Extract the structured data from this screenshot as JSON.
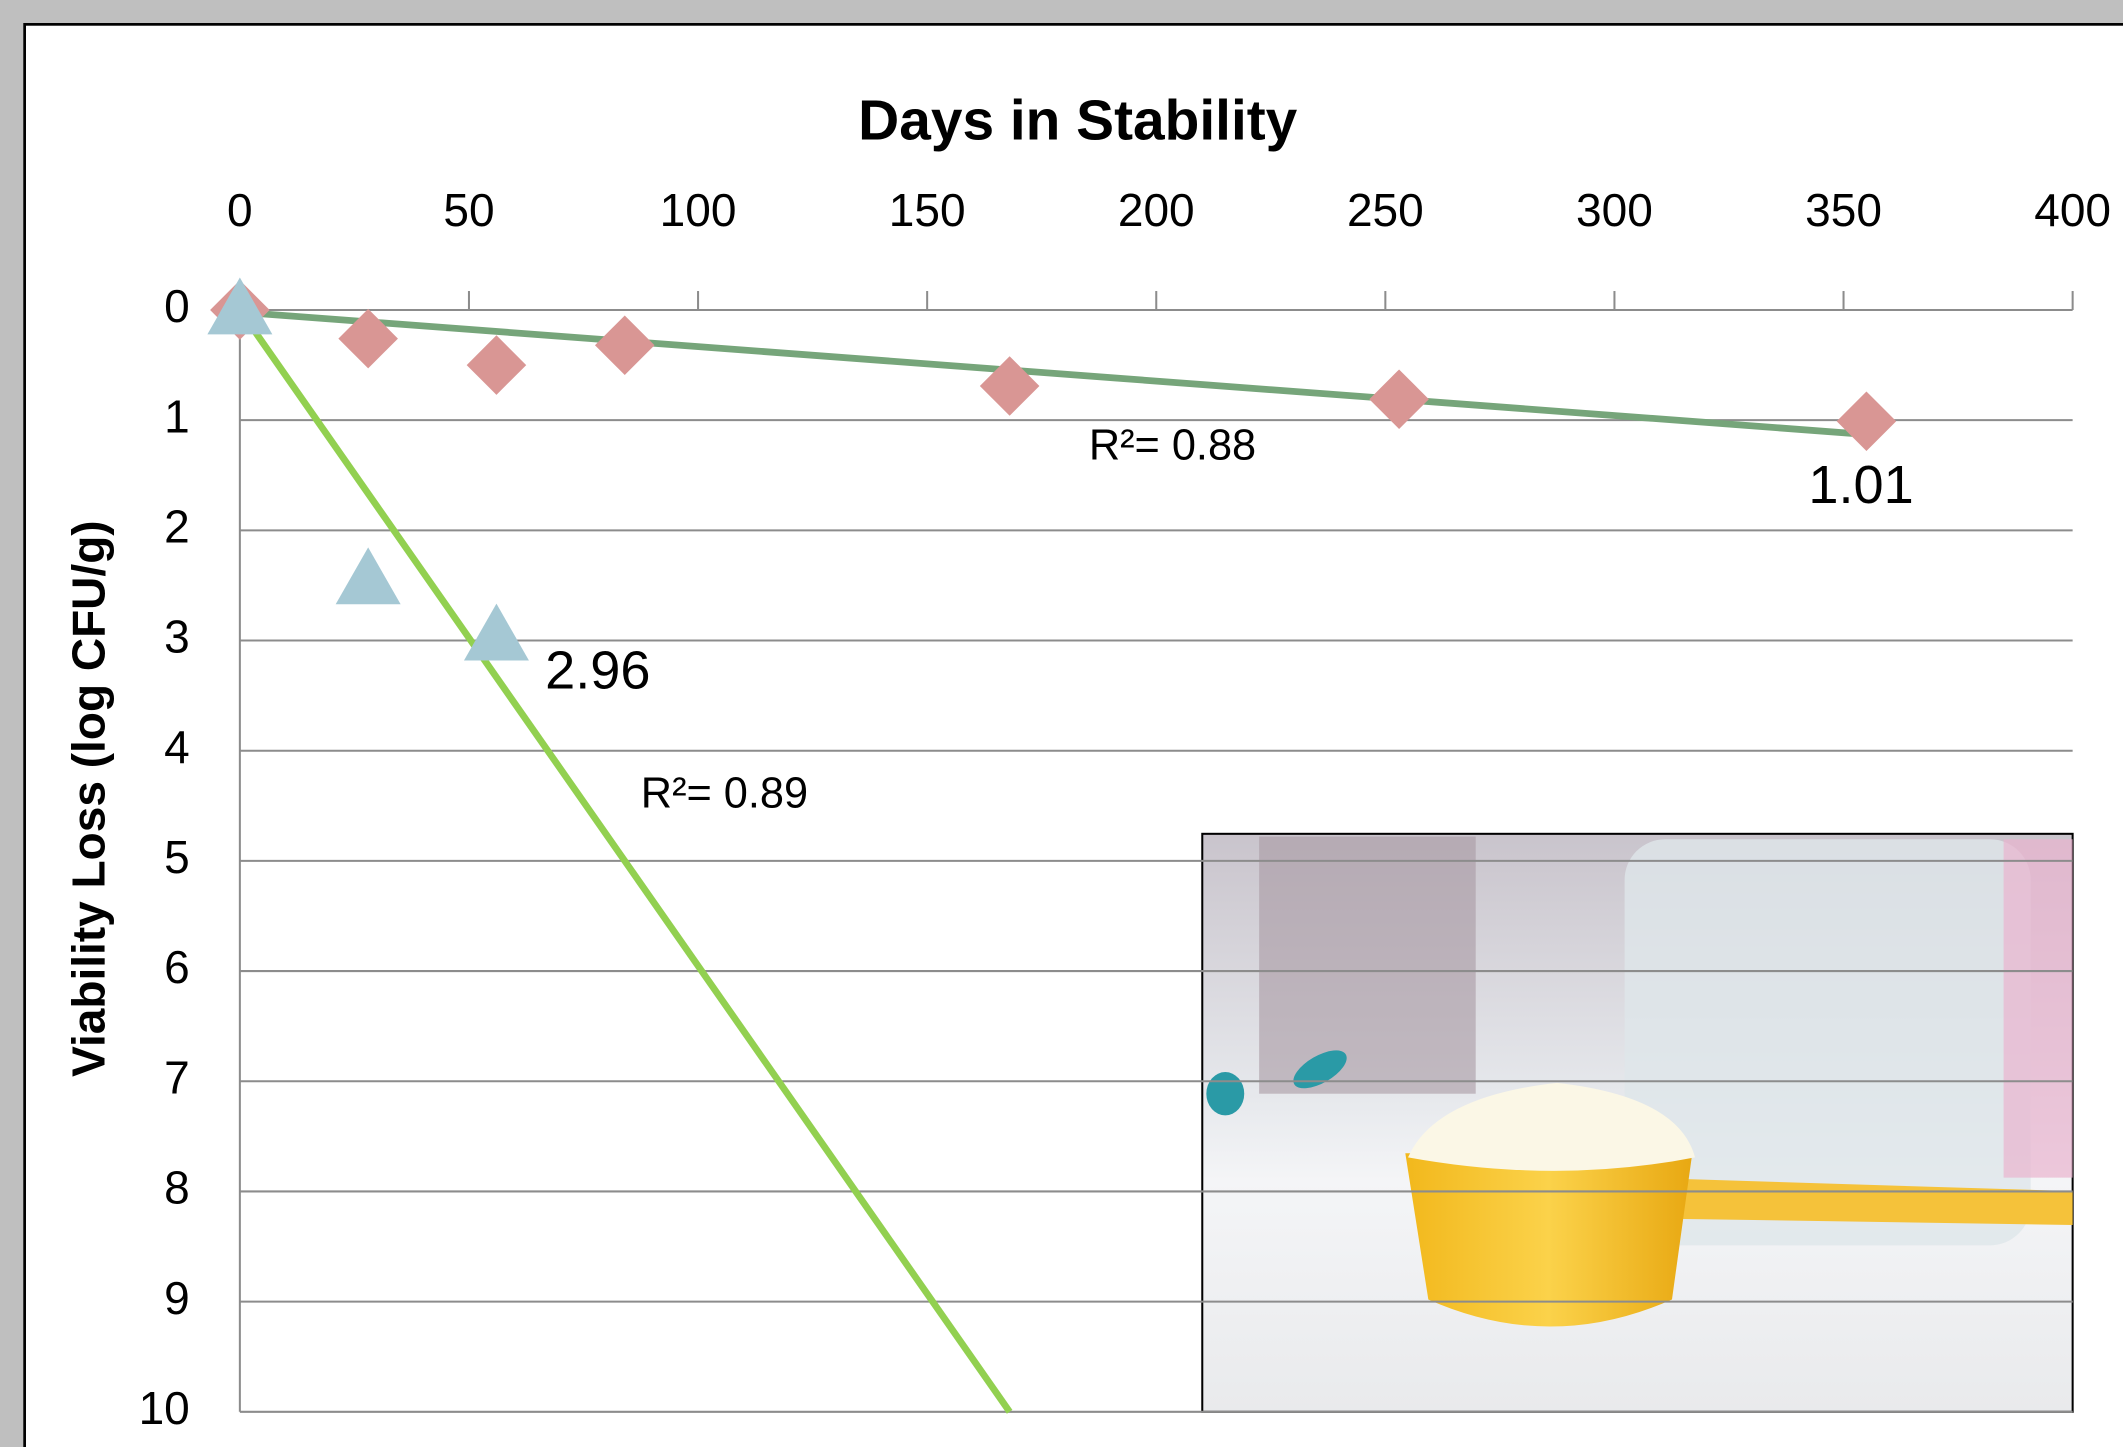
{
  "chart_data": {
    "type": "scatter",
    "title": "Days in Stability",
    "y_label": "Viability Loss (log CFU/g)",
    "xlim": [
      0,
      400
    ],
    "xticks": [
      0,
      50,
      100,
      150,
      200,
      250,
      300,
      350,
      400
    ],
    "ylim": [
      0,
      10
    ],
    "yticks": [
      0,
      1,
      2,
      3,
      4,
      5,
      6,
      7,
      8,
      9,
      10
    ],
    "y_inverted": true,
    "x_axis_position": "top",
    "grid": true,
    "series": [
      {
        "marker": "diamond",
        "color": "#d99694",
        "x": [
          0,
          28,
          56,
          84,
          168,
          253,
          355
        ],
        "values": [
          0,
          0.26,
          0.5,
          0.32,
          0.69,
          0.81,
          1.01
        ],
        "value_labels": [
          null,
          null,
          null,
          null,
          null,
          null,
          "1.01"
        ]
      },
      {
        "marker": "triangle",
        "color": "#a5c8d4",
        "x": [
          0,
          28,
          56
        ],
        "values": [
          0,
          2.45,
          2.96
        ],
        "value_labels": [
          null,
          null,
          "2.96"
        ]
      }
    ],
    "trendlines": [
      {
        "color": "#76a57a",
        "x": [
          0,
          355
        ],
        "values": [
          0.02,
          1.13
        ],
        "annotation": "R²= 0.88"
      },
      {
        "color": "#92d050",
        "x": [
          0,
          168
        ],
        "values": [
          0,
          10
        ],
        "annotation": "R²= 0.89"
      }
    ]
  }
}
